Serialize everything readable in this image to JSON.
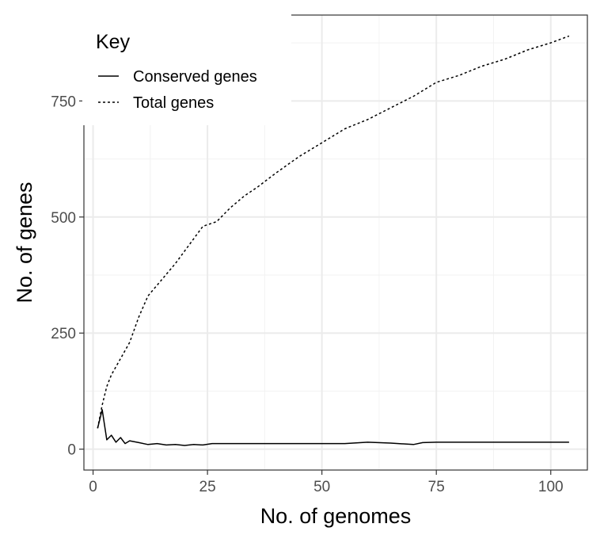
{
  "chart_data": {
    "type": "line",
    "title": "",
    "xlabel": "No. of genomes",
    "ylabel": "No. of genes",
    "xlim": [
      -2,
      108
    ],
    "ylim": [
      -45,
      935
    ],
    "x_ticks": [
      0,
      25,
      50,
      75,
      100
    ],
    "y_ticks": [
      0,
      250,
      500,
      750
    ],
    "grid": true,
    "legend": {
      "title": "Key",
      "placement": "top-left",
      "entries": [
        "Conserved genes",
        "Total genes"
      ]
    },
    "series": [
      {
        "name": "Conserved genes",
        "line_style": "solid",
        "color": "#000000",
        "x": [
          1,
          2,
          3,
          4,
          5,
          6,
          7,
          8,
          10,
          12,
          14,
          16,
          18,
          20,
          22,
          24,
          26,
          30,
          35,
          40,
          45,
          50,
          55,
          60,
          65,
          70,
          72,
          75,
          80,
          90,
          104
        ],
        "y": [
          45,
          85,
          20,
          30,
          15,
          25,
          12,
          18,
          14,
          10,
          12,
          9,
          10,
          8,
          10,
          9,
          12,
          12,
          12,
          12,
          12,
          12,
          12,
          15,
          13,
          10,
          14,
          15,
          15,
          15,
          15
        ]
      },
      {
        "name": "Total genes",
        "line_style": "dashed",
        "color": "#000000",
        "x": [
          1,
          2,
          3,
          4,
          6,
          8,
          10,
          12,
          15,
          18,
          21,
          24,
          27,
          30,
          33,
          36,
          40,
          45,
          50,
          55,
          60,
          65,
          70,
          75,
          80,
          85,
          90,
          95,
          100,
          104
        ],
        "y": [
          45,
          95,
          135,
          160,
          195,
          230,
          285,
          330,
          365,
          400,
          440,
          480,
          490,
          520,
          545,
          565,
          595,
          630,
          660,
          690,
          710,
          735,
          760,
          790,
          805,
          825,
          840,
          860,
          875,
          890
        ]
      }
    ]
  }
}
